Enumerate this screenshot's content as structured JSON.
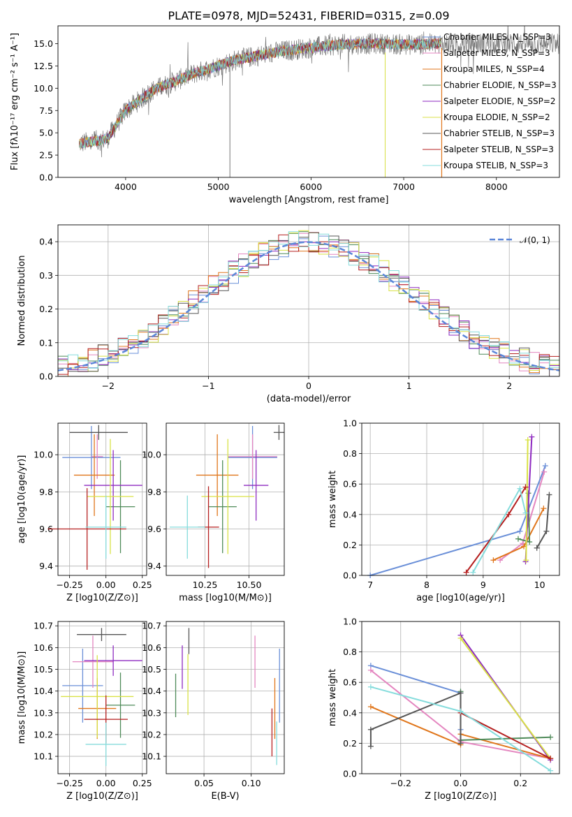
{
  "title": "PLATE=0978, MJD=52431, FIBERID=0315, z=0.09",
  "colors": [
    "#6a8fd8",
    "#e486c0",
    "#e0761b",
    "#4e8a58",
    "#8e2ac0",
    "#d9e246",
    "#555555",
    "#b51f1f",
    "#85dcdc"
  ],
  "chart_data": [
    {
      "id": "spectrum",
      "type": "line",
      "xlabel": "wavelength [Angstrom, rest frame]",
      "ylabel": "Flux [fλ10⁻¹⁷ erg cm⁻² s⁻¹ A⁻¹]",
      "xlim": [
        3270,
        8680
      ],
      "ylim": [
        0,
        17
      ],
      "xticks": [
        4000,
        5000,
        6000,
        7000,
        8000
      ],
      "yticks": [
        0.0,
        2.5,
        5.0,
        7.5,
        10.0,
        12.5,
        15.0
      ],
      "continuum_x": [
        3500,
        3800,
        4000,
        4300,
        4700,
        5200,
        5700,
        6300,
        6700,
        7100,
        7400
      ],
      "continuum_y": [
        3.8,
        4.3,
        7.5,
        9.8,
        11.5,
        13.2,
        14.2,
        14.9,
        15.0,
        14.9,
        15.0
      ],
      "model_range": [
        3500,
        7410
      ],
      "data_range": [
        3500,
        8680
      ],
      "legend": [
        "Chabrier MILES, N_SSP=3",
        "Salpeter MILES, N_SSP=3",
        "Kroupa MILES, N_SSP=4",
        "Chabrier ELODIE, N_SSP=3",
        "Salpeter ELODIE, N_SSP=2",
        "Kroupa ELODIE, N_SSP=2",
        "Chabrier STELIB, N_SSP=3",
        "Salpeter STELIB, N_SSP=3",
        "Kroupa STELIB, N_SSP=3"
      ]
    },
    {
      "id": "residuals",
      "type": "step",
      "xlabel": "(data-model)/error",
      "ylabel": "Normed distribution",
      "xlim": [
        -2.5,
        2.5
      ],
      "ylim": [
        0,
        0.45
      ],
      "xticks": [
        -2,
        -1,
        0,
        1,
        2
      ],
      "yticks": [
        0.0,
        0.1,
        0.2,
        0.3,
        0.4
      ],
      "gaussian_label": "𝒩(0, 1)",
      "bin_width": 0.1
    },
    {
      "id": "age-vs-Z",
      "type": "errorbar",
      "xlabel": "Z [log10(Z/Z⊙)]",
      "ylabel": "age [log10(age/yr)]",
      "xlim": [
        -0.33,
        0.28
      ],
      "ylim": [
        9.35,
        10.17
      ],
      "xticks": [
        -0.25,
        0.0,
        0.25
      ],
      "yticks": [
        9.4,
        9.6,
        9.8,
        10.0
      ],
      "points": [
        {
          "x": -0.1,
          "y": 9.985,
          "xe": 0.2,
          "ye": 0.17
        },
        {
          "x": -0.06,
          "y": 9.99,
          "xe": 0.04,
          "ye": 0.12
        },
        {
          "x": -0.08,
          "y": 9.89,
          "xe": 0.14,
          "ye": 0.22
        },
        {
          "x": 0.1,
          "y": 9.72,
          "xe": 0.1,
          "ye": 0.25
        },
        {
          "x": 0.05,
          "y": 9.835,
          "xe": 0.2,
          "ye": 0.19
        },
        {
          "x": 0.03,
          "y": 9.775,
          "xe": 0.16,
          "ye": 0.31
        },
        {
          "x": -0.05,
          "y": 10.12,
          "xe": 0.2,
          "ye": 0.04
        },
        {
          "x": -0.13,
          "y": 9.6,
          "xe": 0.27,
          "ye": 0.22
        },
        {
          "x": 0.0,
          "y": 9.61,
          "xe": 0.14,
          "ye": 0.17
        }
      ]
    },
    {
      "id": "age-vs-mass",
      "type": "errorbar",
      "xlabel": "mass [log10(M/M⊙)]",
      "ylabel": "",
      "xlim": [
        10.03,
        10.7
      ],
      "ylim": [
        9.35,
        10.17
      ],
      "xticks": [
        10.25,
        10.5
      ],
      "yticks": [
        9.4,
        9.6,
        9.8,
        10.0
      ],
      "points": [
        {
          "x": 10.52,
          "y": 9.985,
          "xe": 0.14,
          "ye": 0.17
        },
        {
          "x": 10.52,
          "y": 9.99,
          "xe": 0.14,
          "ye": 0.12
        },
        {
          "x": 10.32,
          "y": 9.89,
          "xe": 0.12,
          "ye": 0.22
        },
        {
          "x": 10.35,
          "y": 9.72,
          "xe": 0.08,
          "ye": 0.25
        },
        {
          "x": 10.54,
          "y": 9.835,
          "xe": 0.07,
          "ye": 0.19
        },
        {
          "x": 10.38,
          "y": 9.775,
          "xe": 0.15,
          "ye": 0.31
        },
        {
          "x": 10.67,
          "y": 10.12,
          "xe": 0.03,
          "ye": 0.04
        },
        {
          "x": 10.27,
          "y": 9.61,
          "xe": 0.06,
          "ye": 0.22
        },
        {
          "x": 10.15,
          "y": 9.61,
          "xe": 0.1,
          "ye": 0.17
        }
      ]
    },
    {
      "id": "weight-vs-age",
      "type": "line",
      "xlabel": "age [log10(age/yr)]",
      "ylabel": "mass weight",
      "xlim": [
        6.85,
        10.35
      ],
      "ylim": [
        0,
        1.0
      ],
      "xticks": [
        7,
        8,
        9,
        10
      ],
      "yticks": [
        0.0,
        0.2,
        0.4,
        0.6,
        0.8,
        1.0
      ],
      "series": [
        {
          "x": [
            7.0,
            9.65,
            10.1
          ],
          "y": [
            0.0,
            0.29,
            0.72
          ]
        },
        {
          "x": [
            9.3,
            9.7,
            10.08
          ],
          "y": [
            0.1,
            0.21,
            0.68
          ]
        },
        {
          "x": [
            9.18,
            9.72,
            10.07
          ],
          "y": [
            0.1,
            0.19,
            0.44
          ]
        },
        {
          "x": [
            9.62,
            9.82,
            9.8
          ],
          "y": [
            0.24,
            0.22,
            0.54
          ]
        },
        {
          "x": [
            9.75,
            9.86
          ],
          "y": [
            0.09,
            0.91
          ]
        },
        {
          "x": [
            9.76,
            9.79
          ],
          "y": [
            0.1,
            0.89
          ]
        },
        {
          "x": [
            9.95,
            10.12,
            10.17
          ],
          "y": [
            0.18,
            0.29,
            0.53
          ]
        },
        {
          "x": [
            8.7,
            9.45,
            9.75
          ],
          "y": [
            0.02,
            0.4,
            0.58
          ]
        },
        {
          "x": [
            8.82,
            9.65,
            9.75
          ],
          "y": [
            0.02,
            0.57,
            0.41
          ]
        }
      ]
    },
    {
      "id": "mass-vs-Z",
      "type": "errorbar",
      "xlabel": "Z [log10(Z/Z⊙)]",
      "ylabel": "mass [log10(M/M⊙)]",
      "xlim": [
        -0.33,
        0.28
      ],
      "ylim": [
        10.02,
        10.72
      ],
      "xticks": [
        -0.25,
        0.0,
        0.25
      ],
      "yticks": [
        10.1,
        10.2,
        10.3,
        10.4,
        10.5,
        10.6,
        10.7
      ],
      "points": [
        {
          "x": -0.16,
          "y": 10.425,
          "xe": 0.14,
          "ye": 0.17
        },
        {
          "x": -0.09,
          "y": 10.535,
          "xe": 0.14,
          "ye": 0.12
        },
        {
          "x": -0.06,
          "y": 10.32,
          "xe": 0.13,
          "ye": 0.14
        },
        {
          "x": 0.1,
          "y": 10.335,
          "xe": 0.1,
          "ye": 0.15
        },
        {
          "x": 0.05,
          "y": 10.54,
          "xe": 0.2,
          "ye": 0.07
        },
        {
          "x": -0.06,
          "y": 10.375,
          "xe": 0.25,
          "ye": 0.19
        },
        {
          "x": -0.03,
          "y": 10.66,
          "xe": 0.17,
          "ye": 0.03
        },
        {
          "x": 0.0,
          "y": 10.27,
          "xe": 0.15,
          "ye": 0.11
        },
        {
          "x": 0.0,
          "y": 10.155,
          "xe": 0.14,
          "ye": 0.1
        }
      ]
    },
    {
      "id": "mass-vs-EBV",
      "type": "errorbar",
      "xlabel": "E(B-V)",
      "ylabel": "",
      "xlim": [
        0.01,
        0.135
      ],
      "ylim": [
        10.02,
        10.72
      ],
      "xticks": [
        0.05,
        0.1
      ],
      "yticks": [
        10.1,
        10.2,
        10.3,
        10.4,
        10.5,
        10.6,
        10.7
      ],
      "points": [
        {
          "x": 0.13,
          "y": 10.425,
          "xe": 0.0,
          "ye": 0.17
        },
        {
          "x": 0.104,
          "y": 10.535,
          "xe": 0.0,
          "ye": 0.12
        },
        {
          "x": 0.125,
          "y": 10.32,
          "xe": 0.0,
          "ye": 0.14
        },
        {
          "x": 0.02,
          "y": 10.38,
          "xe": 0.0,
          "ye": 0.1
        },
        {
          "x": 0.027,
          "y": 10.51,
          "xe": 0.0,
          "ye": 0.1
        },
        {
          "x": 0.033,
          "y": 10.43,
          "xe": 0.0,
          "ye": 0.14
        },
        {
          "x": 0.034,
          "y": 10.63,
          "xe": 0.0,
          "ye": 0.06
        },
        {
          "x": 0.122,
          "y": 10.21,
          "xe": 0.0,
          "ye": 0.11
        },
        {
          "x": 0.127,
          "y": 10.16,
          "xe": 0.0,
          "ye": 0.1
        }
      ]
    },
    {
      "id": "weight-vs-Z",
      "type": "line",
      "xlabel": "Z [log10(Z/Z⊙)]",
      "ylabel": "mass weight",
      "xlim": [
        -0.33,
        0.33
      ],
      "ylim": [
        0,
        1.0
      ],
      "xticks": [
        -0.2,
        0.0,
        0.2
      ],
      "yticks": [
        0.0,
        0.2,
        0.4,
        0.6,
        0.8,
        1.0
      ],
      "series": [
        {
          "x": [
            -0.3,
            0.0,
            0.0
          ],
          "y": [
            0.71,
            0.53,
            0.29
          ]
        },
        {
          "x": [
            -0.3,
            0.0,
            0.3
          ],
          "y": [
            0.68,
            0.21,
            0.1
          ]
        },
        {
          "x": [
            -0.3,
            0.0,
            0.0,
            0.3
          ],
          "y": [
            0.44,
            0.19,
            0.26,
            0.1
          ]
        },
        {
          "x": [
            0.0,
            0.0,
            0.3
          ],
          "y": [
            0.54,
            0.22,
            0.24
          ]
        },
        {
          "x": [
            0.0,
            0.3
          ],
          "y": [
            0.91,
            0.09
          ]
        },
        {
          "x": [
            0.0,
            0.3
          ],
          "y": [
            0.89,
            0.1
          ]
        },
        {
          "x": [
            -0.3,
            -0.3,
            0.0,
            0.0
          ],
          "y": [
            0.18,
            0.29,
            0.53,
            0.2
          ]
        },
        {
          "x": [
            0.0,
            0.3
          ],
          "y": [
            0.4,
            0.1
          ]
        },
        {
          "x": [
            -0.3,
            0.0,
            0.3
          ],
          "y": [
            0.57,
            0.41,
            0.02
          ]
        }
      ]
    }
  ]
}
